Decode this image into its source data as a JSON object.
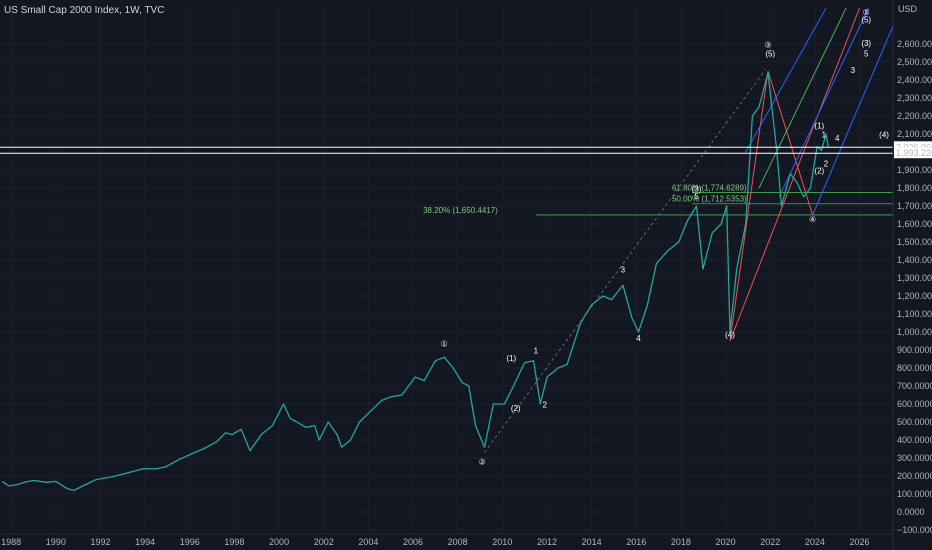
{
  "window": {
    "title": "US Small Cap 2000 Index, 1W, TVC",
    "currency": "USD"
  },
  "chart_data": {
    "type": "line",
    "title": "US Small Cap 2000 Index, 1W, TVC",
    "ylim": [
      -100,
      2800
    ],
    "xlim": [
      1987.5,
      2027.5
    ],
    "y_ticks": [
      {
        "v": 2600,
        "label": "2,600.0000"
      },
      {
        "v": 2500,
        "label": "2,500.0000"
      },
      {
        "v": 2400,
        "label": "2,400.0000"
      },
      {
        "v": 2300,
        "label": "2,300.0000"
      },
      {
        "v": 2200,
        "label": "2,200.0000"
      },
      {
        "v": 2100,
        "label": "2,100.0000"
      },
      {
        "v": 1900,
        "label": "1,900.0000"
      },
      {
        "v": 1800,
        "label": "1,800.0000"
      },
      {
        "v": 1700,
        "label": "1,700.0000"
      },
      {
        "v": 1600,
        "label": "1,600.0000"
      },
      {
        "v": 1500,
        "label": "1,500.0000"
      },
      {
        "v": 1400,
        "label": "1,400.0000"
      },
      {
        "v": 1300,
        "label": "1,300.0000"
      },
      {
        "v": 1200,
        "label": "1,200.0000"
      },
      {
        "v": 1100,
        "label": "1,100.0000"
      },
      {
        "v": 1000,
        "label": "1,000.0000"
      },
      {
        "v": 900,
        "label": "900.0000"
      },
      {
        "v": 800,
        "label": "800.0000"
      },
      {
        "v": 700,
        "label": "700.0000"
      },
      {
        "v": 600,
        "label": "600.0000"
      },
      {
        "v": 500,
        "label": "500.0000"
      },
      {
        "v": 400,
        "label": "400.0000"
      },
      {
        "v": 300,
        "label": "300.0000"
      },
      {
        "v": 200,
        "label": "200.0000"
      },
      {
        "v": 100,
        "label": "100.0000"
      },
      {
        "v": 0,
        "label": "0.0000"
      },
      {
        "v": -100,
        "label": "−100.0000"
      }
    ],
    "x_ticks": [
      {
        "v": 1988,
        "label": "1988"
      },
      {
        "v": 1990,
        "label": "1990"
      },
      {
        "v": 1992,
        "label": "1992"
      },
      {
        "v": 1994,
        "label": "1994"
      },
      {
        "v": 1996,
        "label": "1996"
      },
      {
        "v": 1998,
        "label": "1998"
      },
      {
        "v": 2000,
        "label": "2000"
      },
      {
        "v": 2002,
        "label": "2002"
      },
      {
        "v": 2004,
        "label": "2004"
      },
      {
        "v": 2006,
        "label": "2006"
      },
      {
        "v": 2008,
        "label": "2008"
      },
      {
        "v": 2010,
        "label": "2010"
      },
      {
        "v": 2012,
        "label": "2012"
      },
      {
        "v": 2014,
        "label": "2014"
      },
      {
        "v": 2016,
        "label": "2016"
      },
      {
        "v": 2018,
        "label": "2018"
      },
      {
        "v": 2020,
        "label": "2020"
      },
      {
        "v": 2022,
        "label": "2022"
      },
      {
        "v": 2024,
        "label": "2024"
      },
      {
        "v": 2026,
        "label": "2026"
      }
    ],
    "price_labels": [
      {
        "value": 2026.0654,
        "text": "2,026.0654",
        "color": "#ffffff",
        "text_color": "#131722"
      },
      {
        "value": 1993.2269,
        "text": "1,993.2269",
        "color": "#ffffff",
        "text_color": "#131722"
      }
    ],
    "series": [
      {
        "x": [
          1987.6,
          1987.9,
          1988.2,
          1988.6,
          1989,
          1989.6,
          1990,
          1990.5,
          1990.8,
          1991.3,
          1991.8,
          1992.5,
          1993.3,
          1993.9,
          1994.5,
          1994.9,
          1995.5,
          1996.2,
          1996.6,
          1997.2,
          1997.6,
          1997.9,
          1998.3,
          1998.7,
          1999.2,
          1999.7,
          2000.2,
          2000.5,
          2000.8,
          2001.2,
          2001.6,
          2001.8,
          2002.2,
          2002.6,
          2002.8,
          2003.2,
          2003.6,
          2004.1,
          2004.6,
          2005,
          2005.5,
          2006.1,
          2006.5,
          2007,
          2007.4,
          2007.8,
          2008.2,
          2008.5,
          2008.8,
          2009.2,
          2009.6,
          2010.1,
          2010.5,
          2011,
          2011.4,
          2011.7,
          2012,
          2012.5,
          2012.9,
          2013.5,
          2014,
          2014.5,
          2014.9,
          2015.4,
          2015.8,
          2016.1,
          2016.5,
          2016.9,
          2017.4,
          2017.9,
          2018.3,
          2018.7,
          2018.99,
          2019.4,
          2019.8,
          2020.05,
          2020.2,
          2020.5,
          2020.9,
          2021.2,
          2021.5,
          2021.9,
          2022.3,
          2022.5,
          2022.9,
          2023.2,
          2023.5,
          2023.8,
          2024.1,
          2024.3,
          2024.5,
          2024.6
        ],
        "y": [
          170,
          145,
          150,
          165,
          175,
          165,
          170,
          130,
          120,
          150,
          180,
          195,
          220,
          240,
          240,
          250,
          290,
          330,
          350,
          390,
          440,
          430,
          460,
          340,
          430,
          480,
          600,
          520,
          500,
          470,
          480,
          400,
          500,
          430,
          360,
          400,
          500,
          560,
          620,
          640,
          650,
          750,
          730,
          840,
          860,
          800,
          720,
          700,
          480,
          360,
          600,
          600,
          700,
          830,
          840,
          600,
          750,
          800,
          820,
          1050,
          1150,
          1200,
          1180,
          1260,
          1080,
          1000,
          1150,
          1380,
          1450,
          1500,
          1620,
          1700,
          1350,
          1550,
          1600,
          1700,
          1000,
          1350,
          1600,
          2200,
          2250,
          2440,
          2000,
          1700,
          1880,
          1830,
          1750,
          1800,
          2030,
          2010,
          2100,
          2030
        ],
        "color": "#26a69a"
      }
    ]
  },
  "wave_labels": [
    {
      "x": 2007.4,
      "y": 920,
      "text": "①"
    },
    {
      "x": 2009.1,
      "y": 265,
      "text": "②"
    },
    {
      "x": 2021.9,
      "y": 2580,
      "text": "③"
    },
    {
      "x": 2022.0,
      "y": 2530,
      "text": "(5)"
    },
    {
      "x": 2023.9,
      "y": 1610,
      "text": "④"
    },
    {
      "x": 2026.3,
      "y": 2760,
      "text": "⑤"
    },
    {
      "x": 2026.3,
      "y": 2720,
      "text": "(5)"
    },
    {
      "x": 2010.4,
      "y": 840,
      "text": "(1)"
    },
    {
      "x": 2010.6,
      "y": 560,
      "text": "(2)"
    },
    {
      "x": 2011.5,
      "y": 880,
      "text": "1"
    },
    {
      "x": 2011.9,
      "y": 580,
      "text": "2"
    },
    {
      "x": 2015.4,
      "y": 1330,
      "text": "3"
    },
    {
      "x": 2016.1,
      "y": 950,
      "text": "4"
    },
    {
      "x": 2018.7,
      "y": 1780,
      "text": "(3)"
    },
    {
      "x": 2018.7,
      "y": 1740,
      "text": "5"
    },
    {
      "x": 2020.2,
      "y": 970,
      "text": "(4)"
    },
    {
      "x": 2024.2,
      "y": 2130,
      "text": "(1)"
    },
    {
      "x": 2024.2,
      "y": 1880,
      "text": "(2)"
    },
    {
      "x": 2024.5,
      "y": 1920,
      "text": "2"
    },
    {
      "x": 2024.4,
      "y": 2080,
      "text": "1"
    },
    {
      "x": 2025.0,
      "y": 2060,
      "text": "4"
    },
    {
      "x": 2025.7,
      "y": 2440,
      "text": "3"
    },
    {
      "x": 2026.3,
      "y": 2590,
      "text": "(3)"
    },
    {
      "x": 2026.3,
      "y": 2530,
      "text": "5"
    },
    {
      "x": 2027.1,
      "y": 2080,
      "text": "(4)"
    }
  ],
  "fib_labels": [
    {
      "text": "38.20% (1,650.4417)",
      "value": 1650.4417
    },
    {
      "text": "50.00% (1,712.5353)",
      "value": 1712.5353
    },
    {
      "text": "61.80% (1,774.6289)",
      "value": 1774.6289
    }
  ]
}
